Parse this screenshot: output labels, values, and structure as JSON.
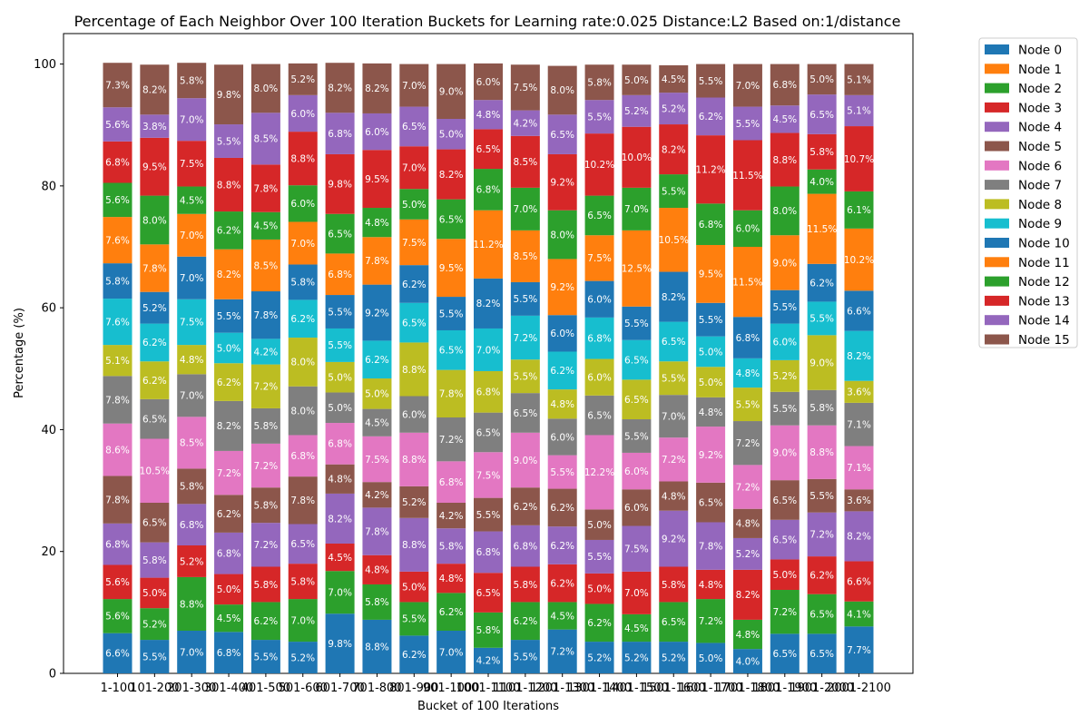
{
  "chart_data": {
    "type": "bar",
    "stacked": true,
    "title": "Percentage of Each Neighbor Over 100 Iteration Buckets for Learning rate:0.025 Distance:L2 Based on:1/distance",
    "xlabel": "Bucket of 100 Iterations",
    "ylabel": "Percentage (%)",
    "ylim": [
      0,
      105
    ],
    "yticks": [
      0,
      20,
      40,
      60,
      80,
      100
    ],
    "grid": false,
    "legend_position": "outside-right",
    "categories": [
      "1-100",
      "101-200",
      "201-300",
      "301-400",
      "401-500",
      "501-600",
      "601-700",
      "701-800",
      "801-900",
      "901-1000",
      "1001-1100",
      "1101-1200",
      "1201-1300",
      "1301-1400",
      "1401-1500",
      "1501-1600",
      "1601-1700",
      "1701-1800",
      "1801-1900",
      "1901-2000",
      "2001-2100"
    ],
    "series": [
      {
        "name": "Node 0",
        "color": "#1f77b4",
        "values": [
          6.6,
          5.5,
          7.0,
          6.8,
          5.5,
          5.2,
          9.8,
          8.8,
          6.2,
          7.0,
          4.2,
          5.5,
          7.2,
          5.2,
          5.2,
          5.2,
          5.0,
          4.0,
          6.5,
          6.5,
          7.7
        ]
      },
      {
        "name": "Node 1",
        "color": "#ff7f0e",
        "values": [
          0,
          0,
          0,
          0,
          0,
          0,
          0,
          0,
          0,
          0,
          0,
          0,
          0,
          0,
          0,
          0,
          0,
          0,
          0,
          0,
          0
        ]
      },
      {
        "name": "Node 2",
        "color": "#2ca02c",
        "values": [
          5.6,
          5.2,
          8.8,
          4.5,
          6.2,
          7.0,
          7.0,
          5.8,
          5.5,
          6.2,
          5.8,
          6.2,
          4.5,
          6.2,
          4.5,
          6.5,
          7.2,
          4.8,
          7.2,
          6.5,
          4.1
        ]
      },
      {
        "name": "Node 3",
        "color": "#d62728",
        "values": [
          5.6,
          5.0,
          5.2,
          5.0,
          5.8,
          5.8,
          4.5,
          4.8,
          5.0,
          4.8,
          6.5,
          5.8,
          6.2,
          5.0,
          7.0,
          5.8,
          4.8,
          8.2,
          5.0,
          6.2,
          6.6
        ]
      },
      {
        "name": "Node 4",
        "color": "#9467bd",
        "values": [
          6.8,
          5.8,
          6.8,
          6.8,
          7.2,
          6.5,
          8.2,
          7.8,
          8.8,
          5.8,
          6.8,
          6.8,
          6.2,
          5.5,
          7.5,
          9.2,
          7.8,
          5.2,
          6.5,
          7.2,
          8.2
        ]
      },
      {
        "name": "Node 5",
        "color": "#8c564b",
        "values": [
          7.8,
          6.5,
          5.8,
          6.2,
          5.8,
          7.8,
          4.8,
          4.2,
          5.2,
          4.2,
          5.5,
          6.2,
          6.2,
          5.0,
          6.0,
          4.8,
          6.5,
          4.8,
          6.5,
          5.5,
          3.6
        ]
      },
      {
        "name": "Node 6",
        "color": "#e377c2",
        "values": [
          8.6,
          10.5,
          8.5,
          7.2,
          7.2,
          6.8,
          6.8,
          7.5,
          8.8,
          6.8,
          7.5,
          9.0,
          5.5,
          12.2,
          6.0,
          7.2,
          9.2,
          7.2,
          9.0,
          8.8,
          7.1
        ]
      },
      {
        "name": "Node 7",
        "color": "#7f7f7f",
        "values": [
          7.8,
          6.5,
          7.0,
          8.2,
          5.8,
          8.0,
          5.0,
          4.5,
          6.0,
          7.2,
          6.5,
          6.5,
          6.0,
          6.5,
          5.5,
          7.0,
          4.8,
          7.2,
          5.5,
          5.8,
          7.1
        ]
      },
      {
        "name": "Node 8",
        "color": "#bcbd22",
        "values": [
          5.1,
          6.2,
          4.8,
          6.2,
          7.2,
          8.0,
          5.0,
          5.0,
          8.8,
          7.8,
          6.8,
          5.5,
          4.8,
          6.0,
          6.5,
          5.5,
          5.0,
          5.5,
          5.2,
          9.0,
          3.6
        ]
      },
      {
        "name": "Node 9",
        "color": "#17becf",
        "values": [
          7.6,
          6.2,
          7.5,
          5.0,
          4.2,
          6.2,
          5.5,
          6.2,
          6.5,
          6.5,
          7.0,
          7.2,
          6.2,
          6.8,
          6.5,
          6.5,
          5.0,
          4.8,
          6.0,
          5.5,
          8.2
        ]
      },
      {
        "name": "Node 10",
        "color": "#1f77b4",
        "values": [
          5.8,
          5.2,
          7.0,
          5.5,
          7.8,
          5.8,
          5.5,
          9.2,
          6.2,
          5.5,
          8.2,
          5.5,
          6.0,
          6.0,
          5.5,
          8.2,
          5.5,
          6.8,
          5.5,
          6.2,
          6.6
        ]
      },
      {
        "name": "Node 11",
        "color": "#ff7f0e",
        "values": [
          7.6,
          7.8,
          7.0,
          8.2,
          8.5,
          7.0,
          6.8,
          7.8,
          7.5,
          9.5,
          11.2,
          8.5,
          9.2,
          7.5,
          12.5,
          10.5,
          9.5,
          11.5,
          9.0,
          11.5,
          10.2
        ]
      },
      {
        "name": "Node 12",
        "color": "#2ca02c",
        "values": [
          5.6,
          8.0,
          4.5,
          6.2,
          4.5,
          6.0,
          6.5,
          4.8,
          5.0,
          6.5,
          6.8,
          7.0,
          8.0,
          6.5,
          7.0,
          5.5,
          6.8,
          6.0,
          8.0,
          4.0,
          6.1
        ]
      },
      {
        "name": "Node 13",
        "color": "#d62728",
        "values": [
          6.8,
          9.5,
          7.5,
          8.8,
          7.8,
          8.8,
          9.8,
          9.5,
          7.0,
          8.2,
          6.5,
          8.5,
          9.2,
          10.2,
          10.0,
          8.2,
          11.2,
          11.5,
          8.8,
          5.8,
          10.7
        ]
      },
      {
        "name": "Node 14",
        "color": "#9467bd",
        "values": [
          5.6,
          3.8,
          7.0,
          5.5,
          8.5,
          6.0,
          6.8,
          6.0,
          6.5,
          5.0,
          4.8,
          4.2,
          6.5,
          5.5,
          5.2,
          5.2,
          6.2,
          5.5,
          4.5,
          6.5,
          5.1
        ]
      },
      {
        "name": "Node 15",
        "color": "#8c564b",
        "values": [
          7.3,
          8.2,
          5.8,
          9.8,
          8.0,
          5.2,
          8.2,
          8.2,
          7.0,
          9.0,
          6.0,
          7.5,
          8.0,
          5.8,
          5.0,
          4.5,
          5.5,
          7.0,
          6.8,
          5.0,
          5.1
        ]
      }
    ]
  }
}
